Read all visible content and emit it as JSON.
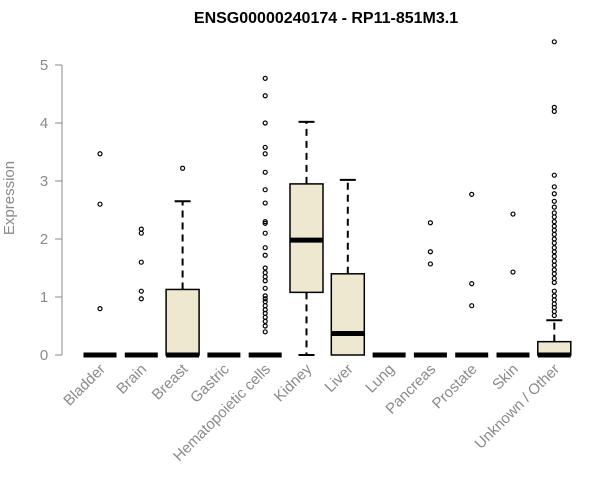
{
  "chart_data": {
    "type": "box",
    "title": "ENSG00000240174 - RP11-851M3.1",
    "xlabel": "",
    "ylabel": "Expression",
    "ylim": [
      0,
      5.5
    ],
    "yticks": [
      0,
      1,
      2,
      3,
      4,
      5
    ],
    "grid": false,
    "box_fill": "#ede8cf",
    "categories": [
      "Bladder",
      "Brain",
      "Breast",
      "Gastric",
      "Hematopoietic cells",
      "Kidney",
      "Liver",
      "Lung",
      "Pancreas",
      "Prostate",
      "Skin",
      "Unknown / Other"
    ],
    "boxes": [
      {
        "min": 0,
        "q1": 0,
        "median": 0,
        "q3": 0,
        "max": 0,
        "outliers": [
          3.47,
          2.6,
          0.8
        ]
      },
      {
        "min": 0,
        "q1": 0,
        "median": 0,
        "q3": 0,
        "max": 0,
        "outliers": [
          2.17,
          2.1,
          1.6,
          1.1,
          0.97
        ]
      },
      {
        "min": 0,
        "q1": 0,
        "median": 0,
        "q3": 1.13,
        "max": 2.65,
        "outliers": [
          3.22
        ]
      },
      {
        "min": 0,
        "q1": 0,
        "median": 0,
        "q3": 0,
        "max": 0,
        "outliers": []
      },
      {
        "min": 0,
        "q1": 0,
        "median": 0,
        "q3": 0,
        "max": 0,
        "outliers": [
          4.77,
          4.47,
          4.0,
          3.58,
          3.47,
          3.15,
          2.85,
          2.62,
          2.3,
          2.27,
          2.1,
          1.85,
          1.72,
          1.5,
          1.42,
          1.35,
          1.28,
          1.15,
          1.02,
          0.97,
          0.92,
          0.85,
          0.78,
          0.72,
          0.65,
          0.58,
          0.5,
          0.4
        ]
      },
      {
        "min": 0,
        "q1": 1.08,
        "median": 1.98,
        "q3": 2.95,
        "max": 4.02,
        "outliers": []
      },
      {
        "min": 0,
        "q1": 0,
        "median": 0.37,
        "q3": 1.4,
        "max": 3.02,
        "outliers": []
      },
      {
        "min": 0,
        "q1": 0,
        "median": 0,
        "q3": 0,
        "max": 0,
        "outliers": []
      },
      {
        "min": 0,
        "q1": 0,
        "median": 0,
        "q3": 0,
        "max": 0,
        "outliers": [
          2.28,
          1.78,
          1.57
        ]
      },
      {
        "min": 0,
        "q1": 0,
        "median": 0,
        "q3": 0,
        "max": 0,
        "outliers": [
          2.77,
          1.23,
          0.85
        ]
      },
      {
        "min": 0,
        "q1": 0,
        "median": 0,
        "q3": 0,
        "max": 0,
        "outliers": [
          2.43,
          1.43
        ]
      },
      {
        "min": 0,
        "q1": 0,
        "median": 0,
        "q3": 0.23,
        "max": 0.6,
        "outliers": [
          5.4,
          4.27,
          4.2,
          3.1,
          2.9,
          2.78,
          2.65,
          2.55,
          2.45,
          2.38,
          2.3,
          2.22,
          2.15,
          2.08,
          2.0,
          1.93,
          1.85,
          1.78,
          1.7,
          1.62,
          1.55,
          1.47,
          1.4,
          1.32,
          1.25,
          1.1,
          1.02,
          0.95,
          0.88,
          0.82,
          0.75,
          0.68
        ]
      }
    ]
  }
}
